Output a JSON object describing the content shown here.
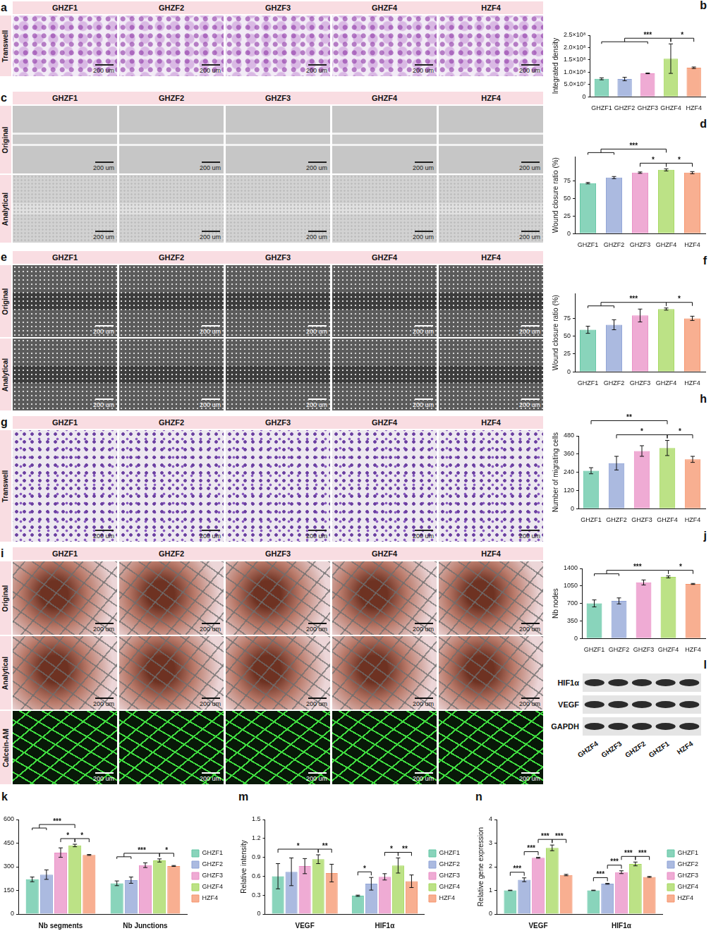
{
  "chart_data": [
    {
      "panel": "b",
      "type": "bar",
      "ylabel": "Integrated density",
      "categories": [
        "GHZF1",
        "GHZF2",
        "GHZF3",
        "GHZF4",
        "HZF4"
      ],
      "values": [
        73000000,
        72000000,
        95000000,
        155000000,
        118000000
      ],
      "errors": [
        4000000,
        7000000,
        1500000,
        60000000,
        3000000
      ],
      "colors": [
        "#62c6a4",
        "#8fa3d6",
        "#ea8fc6",
        "#a5d85e",
        "#f6946c"
      ],
      "ylim": [
        0,
        250000000
      ],
      "yticks": [
        0,
        {
          "value": 50000000,
          "label": "5.0×10⁷"
        },
        {
          "value": 100000000,
          "label": "1.0×10⁸"
        },
        {
          "value": 150000000,
          "label": "1.5×10⁸"
        },
        {
          "value": 200000000,
          "label": "2.0×10⁸"
        },
        {
          "value": 250000000,
          "label": "2.5×10⁸"
        }
      ],
      "annotations": [
        {
          "left": [
            "GHZF1",
            "GHZF2",
            "GHZF3"
          ],
          "right": [
            "GHZF4"
          ],
          "text": "***"
        },
        {
          "left": [
            "GHZF4"
          ],
          "right": [
            "HZF4"
          ],
          "text": "*"
        }
      ]
    },
    {
      "panel": "d",
      "type": "bar",
      "ylabel": "Wound closure ratio (%)",
      "categories": [
        "GHZF1",
        "GHZF2",
        "GHZF3",
        "GHZF4",
        "HZF4"
      ],
      "values": [
        72,
        80,
        87,
        91,
        87
      ],
      "errors": [
        1,
        1.5,
        1,
        1.5,
        1.5
      ],
      "colors": [
        "#62c6a4",
        "#8fa3d6",
        "#ea8fc6",
        "#a5d85e",
        "#f6946c"
      ],
      "ylim": [
        0,
        110
      ],
      "yticks": [
        0,
        25,
        50,
        75
      ],
      "annotations": [
        {
          "left": [
            "GHZF3"
          ],
          "right": [
            "GHZF4"
          ],
          "text": "*"
        },
        {
          "left": [
            "GHZF4"
          ],
          "right": [
            "HZF4"
          ],
          "text": "*"
        },
        {
          "left": [
            "GHZF1",
            "GHZF2"
          ],
          "right": [
            "GHZF4"
          ],
          "text": "***"
        }
      ]
    },
    {
      "panel": "f",
      "type": "bar",
      "ylabel": "Wound closure ratio (%)",
      "categories": [
        "GHZF1",
        "GHZF2",
        "GHZF3",
        "GHZF4",
        "HZF4"
      ],
      "values": [
        59,
        66,
        79,
        88,
        75
      ],
      "errors": [
        5,
        7,
        9,
        1.5,
        3
      ],
      "colors": [
        "#62c6a4",
        "#8fa3d6",
        "#ea8fc6",
        "#a5d85e",
        "#f6946c"
      ],
      "ylim": [
        0,
        110
      ],
      "yticks": [
        0,
        25,
        50,
        75
      ],
      "annotations": [
        {
          "left": [
            "GHZF4"
          ],
          "right": [
            "HZF4"
          ],
          "text": "*"
        },
        {
          "left": [
            "GHZF1",
            "GHZF2"
          ],
          "right": [
            "GHZF4"
          ],
          "text": "***"
        }
      ]
    },
    {
      "panel": "h",
      "type": "bar",
      "ylabel": "Number of migrating cells",
      "categories": [
        "GHZF1",
        "GHZF2",
        "GHZF3",
        "GHZF4",
        "HZF4"
      ],
      "values": [
        250,
        300,
        380,
        400,
        325
      ],
      "errors": [
        20,
        45,
        35,
        50,
        20
      ],
      "colors": [
        "#62c6a4",
        "#8fa3d6",
        "#ea8fc6",
        "#a5d85e",
        "#f6946c"
      ],
      "ylim": [
        0,
        480
      ],
      "yticks": [
        0,
        120,
        240,
        360,
        480
      ],
      "annotations": [
        {
          "left": [
            "GHZF4"
          ],
          "right": [
            "HZF4"
          ],
          "text": "*"
        },
        {
          "left": [
            "GHZF2"
          ],
          "right": [
            "GHZF4"
          ],
          "text": "*"
        },
        {
          "left": [
            "GHZF1"
          ],
          "right": [
            "GHZF4"
          ],
          "text": "**"
        }
      ]
    },
    {
      "panel": "j",
      "type": "bar",
      "ylabel": "Nb nodes",
      "categories": [
        "GHZF1",
        "GHZF2",
        "GHZF3",
        "GHZF4",
        "HZF4"
      ],
      "values": [
        700,
        750,
        1120,
        1230,
        1090
      ],
      "errors": [
        70,
        60,
        50,
        20,
        10
      ],
      "colors": [
        "#62c6a4",
        "#8fa3d6",
        "#ea8fc6",
        "#a5d85e",
        "#f6946c"
      ],
      "ylim": [
        0,
        1400
      ],
      "yticks": [
        0,
        350,
        700,
        1050,
        1400
      ],
      "annotations": [
        {
          "left": [
            "GHZF4"
          ],
          "right": [
            "HZF4"
          ],
          "text": "*"
        },
        {
          "left": [
            "GHZF1",
            "GHZF2"
          ],
          "right": [
            "GHZF4"
          ],
          "text": "***"
        }
      ]
    },
    {
      "panel": "k",
      "type": "bar",
      "legend": "right",
      "categories": [
        "Nb segments",
        "Nb Junctions"
      ],
      "series": [
        {
          "name": "GHZF1",
          "color": "#62c6a4",
          "values": [
            220,
            195
          ],
          "errors": [
            15,
            15
          ]
        },
        {
          "name": "GHZF2",
          "color": "#8fa3d6",
          "values": [
            250,
            215
          ],
          "errors": [
            30,
            20
          ]
        },
        {
          "name": "GHZF3",
          "color": "#ea8fc6",
          "values": [
            390,
            310
          ],
          "errors": [
            30,
            15
          ]
        },
        {
          "name": "GHZF4",
          "color": "#a5d85e",
          "values": [
            435,
            340
          ],
          "errors": [
            8,
            10
          ]
        },
        {
          "name": "HZF4",
          "color": "#f6946c",
          "values": [
            375,
            305
          ],
          "errors": [
            3,
            3
          ]
        }
      ],
      "ylim": [
        0,
        600
      ],
      "yticks": [
        0,
        150,
        300,
        450,
        600
      ],
      "annotations": [
        {
          "category": "Nb segments",
          "left": [
            "GHZF3"
          ],
          "right": [
            "GHZF4"
          ],
          "text": "*"
        },
        {
          "category": "Nb segments",
          "left": [
            "GHZF4"
          ],
          "right": [
            "HZF4"
          ],
          "text": "*"
        },
        {
          "category": "Nb segments",
          "left": [
            "GHZF1",
            "GHZF2"
          ],
          "right": [
            "GHZF4"
          ],
          "text": "***"
        },
        {
          "category": "Nb Junctions",
          "left": [
            "GHZF4"
          ],
          "right": [
            "HZF4"
          ],
          "text": "*"
        },
        {
          "category": "Nb Junctions",
          "left": [
            "GHZF1",
            "GHZF2"
          ],
          "right": [
            "GHZF4"
          ],
          "text": "***"
        }
      ]
    },
    {
      "panel": "m",
      "type": "bar",
      "ylabel": "Relative intensity",
      "legend": "right",
      "categories": [
        "VEGF",
        "HIF1α"
      ],
      "series": [
        {
          "name": "GHZF1",
          "color": "#62c6a4",
          "values": [
            0.6,
            0.29
          ],
          "errors": [
            0.2,
            0.01
          ]
        },
        {
          "name": "GHZF2",
          "color": "#8fa3d6",
          "values": [
            0.67,
            0.48
          ],
          "errors": [
            0.22,
            0.1
          ]
        },
        {
          "name": "GHZF3",
          "color": "#ea8fc6",
          "values": [
            0.76,
            0.59
          ],
          "errors": [
            0.12,
            0.05
          ]
        },
        {
          "name": "GHZF4",
          "color": "#a5d85e",
          "values": [
            0.87,
            0.77
          ],
          "errors": [
            0.07,
            0.12
          ]
        },
        {
          "name": "HZF4",
          "color": "#f6946c",
          "values": [
            0.65,
            0.52
          ],
          "errors": [
            0.14,
            0.1
          ]
        }
      ],
      "ylim": [
        0,
        1.5
      ],
      "yticks": [
        0,
        0.3,
        0.6,
        0.9,
        1.2,
        1.5
      ],
      "annotations": [
        {
          "category": "VEGF",
          "left": [
            "GHZF1"
          ],
          "right": [
            "GHZF4"
          ],
          "text": "*"
        },
        {
          "category": "VEGF",
          "left": [
            "GHZF4"
          ],
          "right": [
            "HZF4"
          ],
          "text": "**"
        },
        {
          "category": "HIF1α",
          "left": [
            "GHZF1"
          ],
          "right": [
            "GHZF2"
          ],
          "text": "*"
        },
        {
          "category": "HIF1α",
          "left": [
            "GHZF3"
          ],
          "right": [
            "GHZF4"
          ],
          "text": "*"
        },
        {
          "category": "HIF1α",
          "left": [
            "GHZF4"
          ],
          "right": [
            "HZF4"
          ],
          "text": "**"
        }
      ]
    },
    {
      "panel": "n",
      "type": "bar",
      "ylabel": "Relative gene expression",
      "legend": "right",
      "categories": [
        "VEGF",
        "HIF1α"
      ],
      "series": [
        {
          "name": "GHZF1",
          "color": "#62c6a4",
          "values": [
            1.0,
            1.0
          ],
          "errors": [
            0.01,
            0.01
          ]
        },
        {
          "name": "GHZF2",
          "color": "#8fa3d6",
          "values": [
            1.45,
            1.28
          ],
          "errors": [
            0.08,
            0.02
          ]
        },
        {
          "name": "GHZF3",
          "color": "#ea8fc6",
          "values": [
            2.38,
            1.77
          ],
          "errors": [
            0.02,
            0.06
          ]
        },
        {
          "name": "GHZF4",
          "color": "#a5d85e",
          "values": [
            2.8,
            2.12
          ],
          "errors": [
            0.12,
            0.08
          ]
        },
        {
          "name": "HZF4",
          "color": "#f6946c",
          "values": [
            1.65,
            1.57
          ],
          "errors": [
            0.03,
            0.02
          ]
        }
      ],
      "ylim": [
        0,
        4
      ],
      "yticks": [
        0,
        1,
        2,
        3,
        4
      ],
      "annotations": [
        {
          "category": "VEGF",
          "left": [
            "GHZF1"
          ],
          "right": [
            "GHZF2"
          ],
          "text": "***"
        },
        {
          "category": "VEGF",
          "left": [
            "GHZF2"
          ],
          "right": [
            "GHZF3"
          ],
          "text": "***"
        },
        {
          "category": "VEGF",
          "left": [
            "GHZF3"
          ],
          "right": [
            "GHZF4"
          ],
          "text": "***"
        },
        {
          "category": "VEGF",
          "left": [
            "GHZF4"
          ],
          "right": [
            "HZF4"
          ],
          "text": "***"
        },
        {
          "category": "HIF1α",
          "left": [
            "GHZF1"
          ],
          "right": [
            "GHZF2"
          ],
          "text": "***"
        },
        {
          "category": "HIF1α",
          "left": [
            "GHZF2"
          ],
          "right": [
            "GHZF3"
          ],
          "text": "***"
        },
        {
          "category": "HIF1α",
          "left": [
            "GHZF3"
          ],
          "right": [
            "GHZF4"
          ],
          "text": "***"
        },
        {
          "category": "HIF1α",
          "left": [
            "GHZF4"
          ],
          "right": [
            "HZF4"
          ],
          "text": "***"
        }
      ]
    }
  ],
  "image_panels": [
    {
      "panel": "a",
      "type": "micrograph",
      "columns": [
        "GHZF1",
        "GHZF2",
        "GHZF3",
        "GHZF4",
        "HZF4"
      ],
      "rows": [
        "Transwell"
      ],
      "scale_bar": "200 um"
    },
    {
      "panel": "c",
      "type": "micrograph",
      "columns": [
        "GHZF1",
        "GHZF2",
        "GHZF3",
        "GHZF4",
        "HZF4"
      ],
      "rows": [
        "Original",
        "Analytical"
      ],
      "scale_bar": "200 um"
    },
    {
      "panel": "e",
      "type": "micrograph",
      "columns": [
        "GHZF1",
        "GHZF2",
        "GHZF3",
        "GHZF4",
        "HZF4"
      ],
      "rows": [
        "Original",
        "Analytical"
      ],
      "scale_bar": "200 um"
    },
    {
      "panel": "g",
      "type": "micrograph",
      "columns": [
        "GHZF1",
        "GHZF2",
        "GHZF3",
        "GHZF4",
        "HZF4"
      ],
      "rows": [
        "Transwell"
      ],
      "scale_bar": "200 um"
    },
    {
      "panel": "i",
      "type": "micrograph",
      "columns": [
        "GHZF1",
        "GHZF2",
        "GHZF3",
        "GHZF4",
        "HZF4"
      ],
      "rows": [
        "Original",
        "Analytical",
        "Calcein-AM"
      ],
      "scale_bar": "200 um"
    },
    {
      "panel": "l",
      "type": "western_blot",
      "rows": [
        "HIF1α",
        "VEGF",
        "GAPDH"
      ],
      "columns": [
        "GHZF4",
        "GHZF3",
        "GHZF2",
        "GHZF1",
        "HZF4"
      ]
    }
  ]
}
